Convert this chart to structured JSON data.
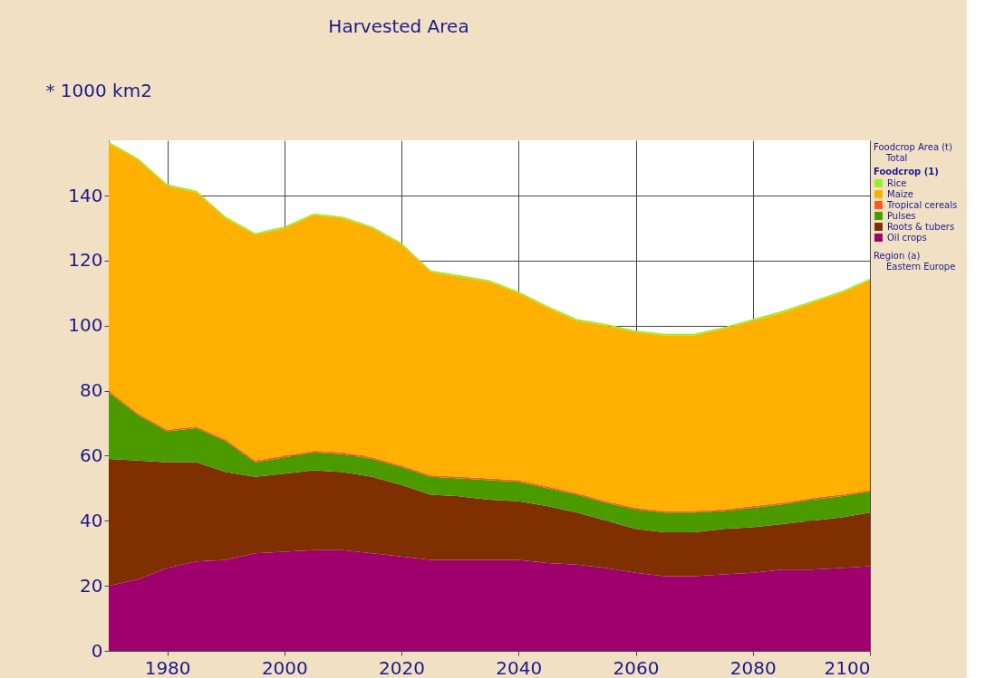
{
  "chart_data": {
    "type": "area",
    "stacked": true,
    "title": "Harvested Area",
    "ylabel": "* 1000 km2",
    "legend_title": "Foodcrop (1)",
    "annotations": [
      "Foodcrop Area (t)",
      "Total",
      "Region (a)",
      "Eastern Europe"
    ],
    "x": [
      1970,
      1975,
      1980,
      1985,
      1990,
      1995,
      2000,
      2005,
      2010,
      2015,
      2020,
      2025,
      2030,
      2035,
      2040,
      2045,
      2050,
      2055,
      2060,
      2065,
      2070,
      2075,
      2080,
      2085,
      2090,
      2095,
      2100
    ],
    "series": [
      {
        "name": "Oil crops",
        "color": "#a0006e",
        "values": [
          20,
          22,
          25.5,
          27.5,
          28,
          30,
          30.5,
          31,
          31,
          30,
          29,
          28,
          28,
          28,
          28,
          27,
          26.5,
          25.5,
          24,
          23,
          23,
          23.5,
          24,
          25,
          25,
          25.5,
          26
        ]
      },
      {
        "name": "Roots & tubers",
        "color": "#803000",
        "values": [
          39,
          36.5,
          32.5,
          30.5,
          27,
          23.5,
          24,
          24.5,
          24,
          23.5,
          22,
          20,
          19.5,
          18.5,
          18,
          17.5,
          16,
          14.5,
          13.5,
          13.5,
          13.5,
          14,
          14,
          14,
          15,
          15.5,
          16.5
        ]
      },
      {
        "name": "Pulses",
        "color": "#4a9a00",
        "values": [
          20.5,
          14,
          9.5,
          10.5,
          9.5,
          4.5,
          5,
          5.5,
          5.5,
          5.5,
          5.5,
          5.5,
          5.5,
          6,
          6,
          5.5,
          5.5,
          5.5,
          6,
          6,
          6,
          5.5,
          6,
          6,
          6.5,
          6.5,
          6.5
        ]
      },
      {
        "name": "Tropical cereals",
        "color": "#ff5a10",
        "values": [
          0.5,
          0.5,
          0.5,
          0.5,
          0.5,
          0.5,
          0.5,
          0.5,
          0.5,
          0.5,
          0.5,
          0.5,
          0.5,
          0.5,
          0.5,
          0.5,
          0.5,
          0.5,
          0.5,
          0.5,
          0.5,
          0.5,
          0.5,
          0.5,
          0.5,
          0.5,
          0.5
        ]
      },
      {
        "name": "Maize",
        "color": "#ffb000",
        "values": [
          76,
          78,
          75,
          72,
          68,
          69.5,
          70,
          72.5,
          72,
          70.5,
          68,
          62.5,
          61.5,
          60.5,
          57.5,
          55,
          53,
          54,
          54,
          54,
          54,
          55.5,
          57,
          58.5,
          60,
          62,
          64.5
        ]
      },
      {
        "name": "Rice",
        "color": "#99ee22",
        "values": [
          0.5,
          0.5,
          0.5,
          0.5,
          0.5,
          0.5,
          0.5,
          0.5,
          0.5,
          0.5,
          0.5,
          0.5,
          0.5,
          0.5,
          0.5,
          0.5,
          0.5,
          0.5,
          0.5,
          0.5,
          0.5,
          0.5,
          0.5,
          0.5,
          0.5,
          0.5,
          0.5
        ]
      }
    ],
    "xlim": [
      1970,
      2100
    ],
    "xticks": [
      1980,
      2000,
      2020,
      2040,
      2060,
      2080,
      2100
    ],
    "ylim": [
      0,
      157
    ],
    "yticks": [
      0,
      20,
      40,
      60,
      80,
      100,
      120,
      140
    ],
    "grid": true,
    "legend": "right"
  }
}
